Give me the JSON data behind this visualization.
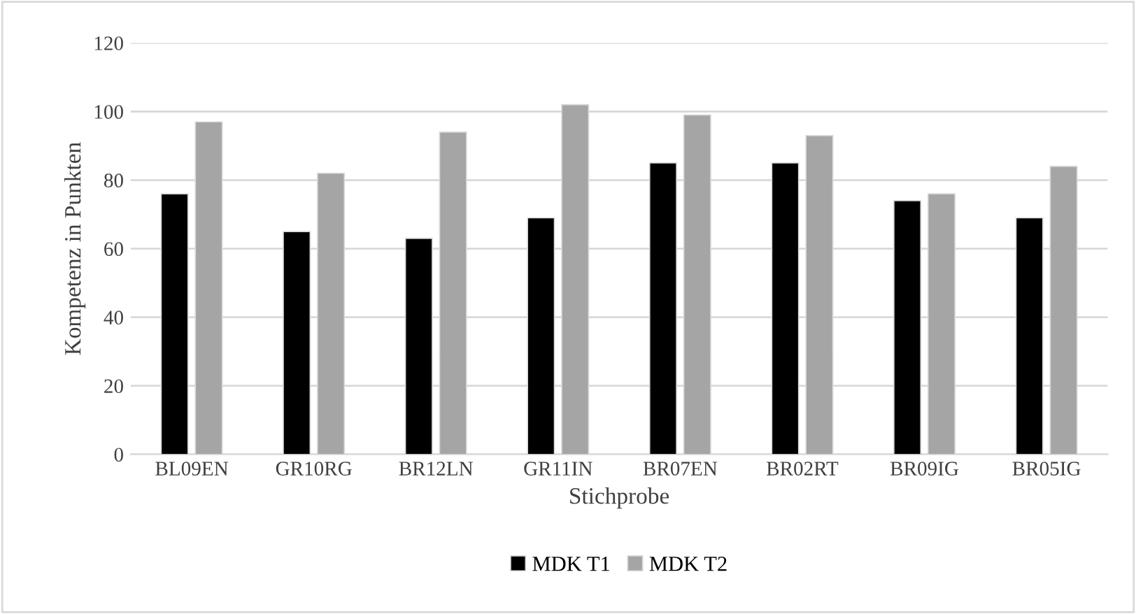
{
  "chart_data": {
    "type": "bar",
    "xlabel": "Stichprobe",
    "ylabel": "Kompetenz in Punkten",
    "categories": [
      "BL09EN",
      "GR10RG",
      "BR12LN",
      "GR11IN",
      "BR07EN",
      "BR02RT",
      "BR09IG",
      "BR05IG"
    ],
    "series": [
      {
        "name": "MDK T1",
        "color": "#000000",
        "values": [
          76,
          65,
          63,
          69,
          85,
          85,
          74,
          69
        ]
      },
      {
        "name": "MDK T2",
        "color": "#a5a5a5",
        "values": [
          97,
          82,
          94,
          102,
          99,
          93,
          76,
          84
        ]
      }
    ],
    "ylim": [
      0,
      120
    ],
    "yticks": [
      0,
      20,
      40,
      60,
      80,
      100,
      120
    ],
    "grid": "y",
    "legend": "bottom"
  }
}
